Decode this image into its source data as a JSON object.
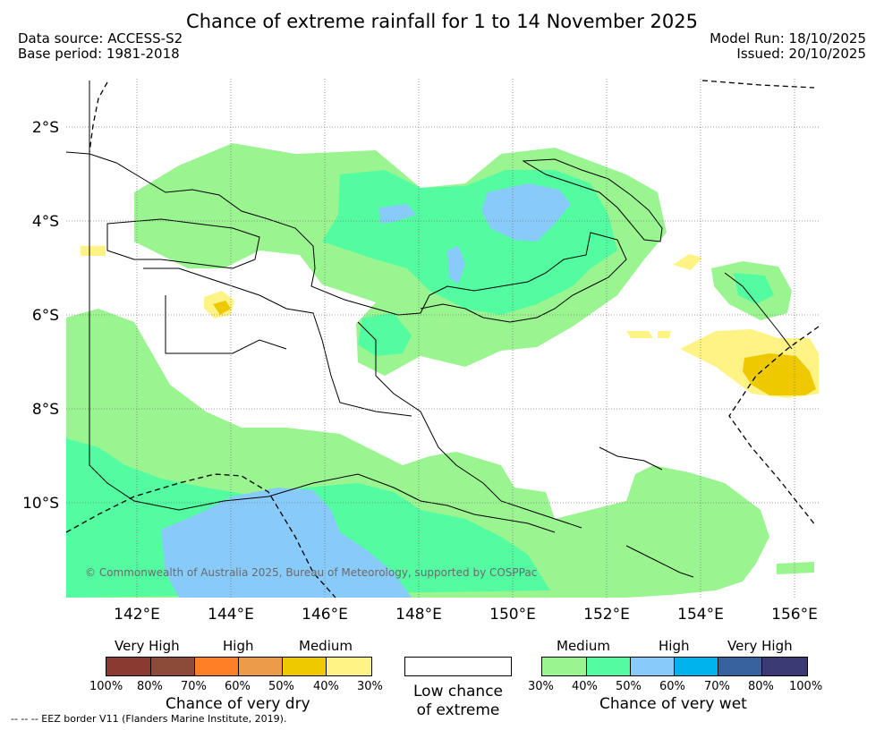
{
  "title": "Chance of extreme rainfall for 1 to 14 November 2025",
  "data_source": "Data source: ACCESS-S2",
  "base_period": "Base period: 1981-2018",
  "model_run": "Model Run: 18/10/2025",
  "issued": "Issued: 20/10/2025",
  "lat_labels": [
    "2°S",
    "4°S",
    "6°S",
    "8°S",
    "10°S"
  ],
  "lon_labels": [
    "142°E",
    "144°E",
    "146°E",
    "148°E",
    "150°E",
    "152°E",
    "154°E",
    "156°E"
  ],
  "copyright": "© Commonwealth of Australia 2025, Bureau of Meteorology, supported by COSPPac",
  "legend": {
    "dry": {
      "heads": [
        "Very High",
        "High",
        "Medium"
      ],
      "ticks": [
        "100%",
        "80%",
        "70%",
        "60%",
        "50%",
        "40%",
        "30%"
      ],
      "colors": [
        "#8b3a32",
        "#8c4a38",
        "#ff7f27",
        "#ec9b4a",
        "#efc900",
        "#fff385"
      ],
      "caption": "Chance of very dry"
    },
    "neutral": {
      "caption_line1": "Low chance",
      "caption_line2": "of extreme"
    },
    "wet": {
      "heads": [
        "Medium",
        "High",
        "Very High"
      ],
      "ticks": [
        "30%",
        "40%",
        "50%",
        "60%",
        "70%",
        "80%",
        "100%"
      ],
      "colors": [
        "#9af490",
        "#53fca1",
        "#88cbfb",
        "#00b3ed",
        "#37629e",
        "#3c3a75"
      ],
      "caption": "Chance of very wet"
    }
  },
  "eez_note": "--  --  -- EEZ border V11 (Flanders Marine Institute, 2019)."
}
